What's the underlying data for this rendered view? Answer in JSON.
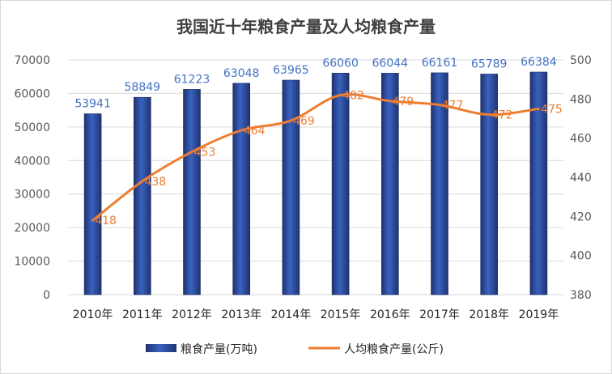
{
  "chart_data": {
    "type": "bar+line",
    "title": "我国近十年粮食产量及人均粮食产量",
    "categories": [
      "2010年",
      "2011年",
      "2012年",
      "2013年",
      "2014年",
      "2015年",
      "2016年",
      "2017年",
      "2018年",
      "2019年"
    ],
    "series": [
      {
        "name": "粮食产量(万吨)",
        "type": "bar",
        "axis": "left",
        "values": [
          53941,
          58849,
          61223,
          63048,
          63965,
          66060,
          66044,
          66161,
          65789,
          66384
        ]
      },
      {
        "name": "人均粮食产量(公斤)",
        "type": "line",
        "axis": "right",
        "values": [
          418,
          438,
          453,
          464,
          469,
          482,
          479,
          477,
          472,
          475
        ]
      }
    ],
    "left_axis": {
      "min": 0,
      "max": 70000,
      "step": 10000,
      "ticks": [
        "0",
        "10000",
        "20000",
        "30000",
        "40000",
        "50000",
        "60000",
        "70000"
      ]
    },
    "right_axis": {
      "min": 380,
      "max": 500,
      "step": 20,
      "ticks": [
        "380",
        "400",
        "420",
        "440",
        "460",
        "480",
        "500"
      ]
    },
    "legend_position": "bottom",
    "colors": {
      "bar": "#2F4E9E",
      "bar_label": "#4472C4",
      "line": "#ED7D31",
      "grid": "#D9D9D9"
    }
  }
}
